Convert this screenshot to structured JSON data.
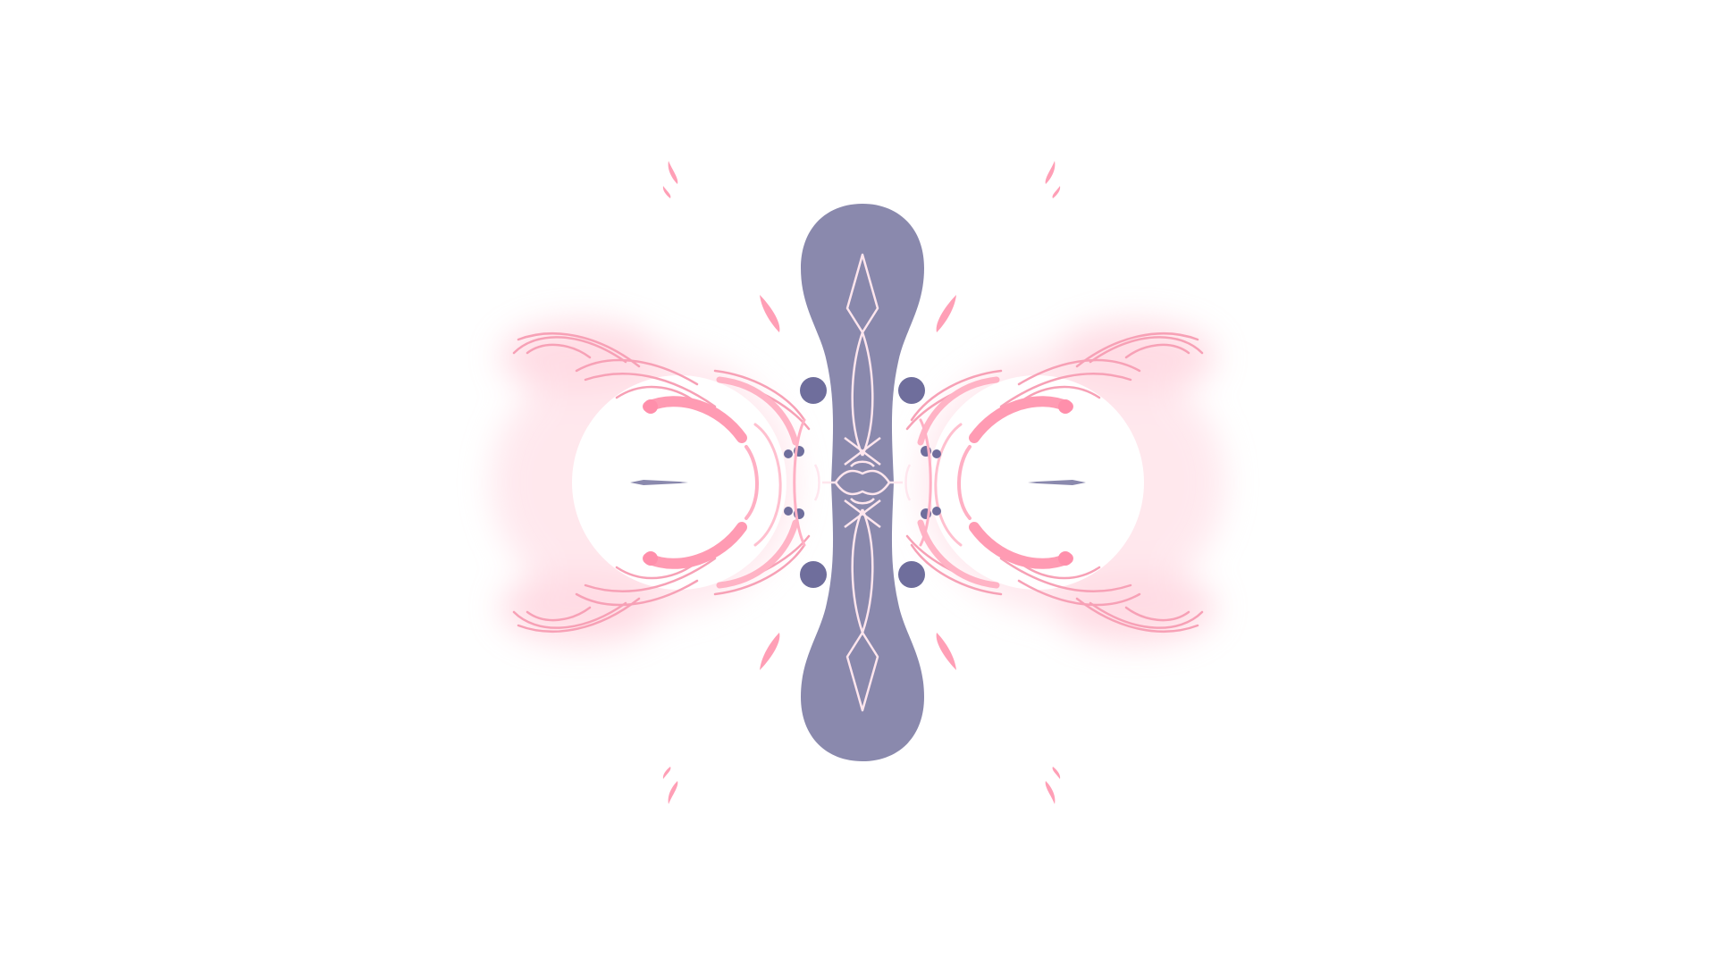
{
  "artwork": {
    "colors": {
      "background": "#ffffff",
      "body": "#8a89ad",
      "body_dark": "#6f6e9c",
      "accent_pink": "#ff9bb3",
      "accent_pink_light": "#ffc0cf",
      "line_light": "#ffe6ee",
      "glow": "#ffd6e0"
    },
    "symmetry": "bilateral-horizontal-and-vertical"
  }
}
